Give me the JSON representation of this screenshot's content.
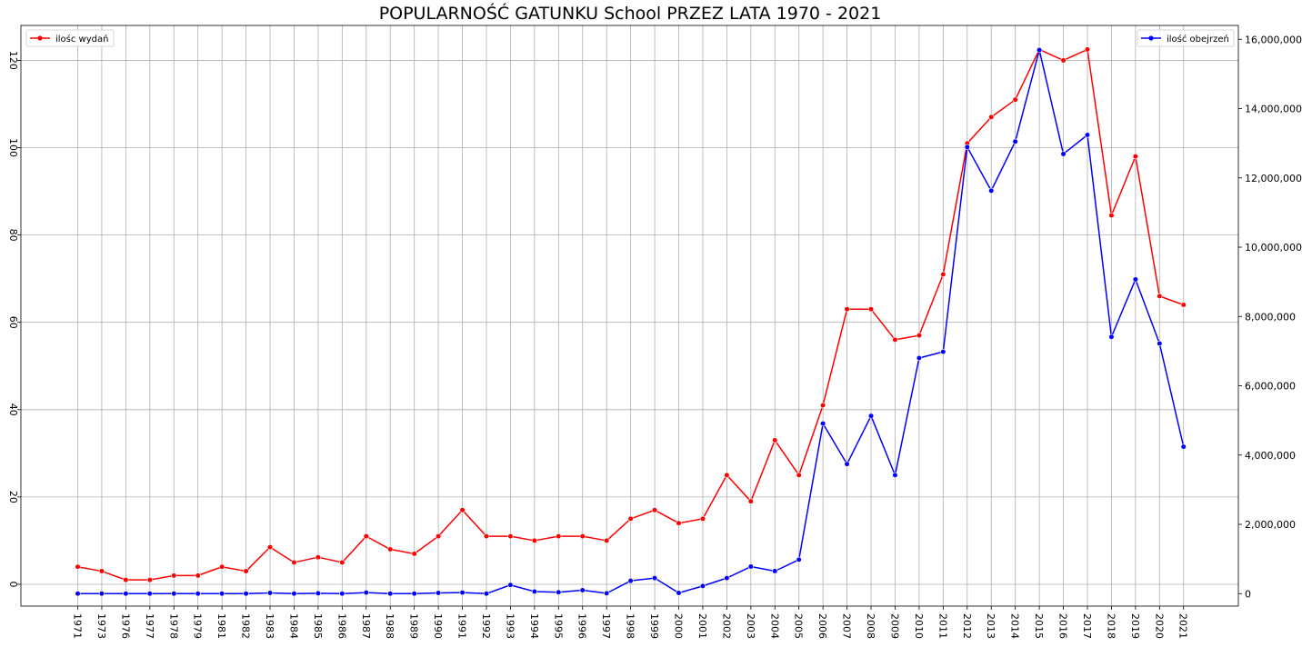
{
  "chart_data": {
    "type": "line",
    "title": "POPULARNOŚĆ GATUNKU School PRZEZ LATA 1970 - 2021",
    "xlabel": "",
    "ylabel": "",
    "y2label": "",
    "categories": [
      "1971",
      "1973",
      "1976",
      "1977",
      "1978",
      "1979",
      "1981",
      "1982",
      "1983",
      "1984",
      "1985",
      "1986",
      "1987",
      "1988",
      "1989",
      "1990",
      "1991",
      "1992",
      "1993",
      "1994",
      "1995",
      "1996",
      "1997",
      "1998",
      "1999",
      "2000",
      "2001",
      "2002",
      "2003",
      "2004",
      "2005",
      "2006",
      "2007",
      "2008",
      "2009",
      "2010",
      "2011",
      "2012",
      "2013",
      "2014",
      "2015",
      "2016",
      "2017",
      "2018",
      "2019",
      "2020",
      "2021"
    ],
    "ylim": [
      -5,
      128
    ],
    "y2lim": [
      -360000,
      16400000
    ],
    "yticks": [
      0,
      20,
      40,
      60,
      80,
      100,
      120
    ],
    "y2ticks": [
      0,
      2000000,
      4000000,
      6000000,
      8000000,
      10000000,
      12000000,
      14000000,
      16000000
    ],
    "y2tick_labels": [
      "0",
      "2,000,000",
      "4,000,000",
      "6,000,000",
      "8,000,000",
      "10,000,000",
      "12,000,000",
      "14,000,000",
      "16,000,000"
    ],
    "grid": true,
    "series": [
      {
        "name": "ilośc wydań",
        "axis": "left",
        "color": "#ff0000",
        "values": [
          4,
          3,
          1,
          1,
          2,
          2,
          4,
          3,
          8.5,
          5,
          6.2,
          5,
          11,
          8,
          7,
          11,
          17,
          11,
          11,
          10,
          11,
          11,
          10,
          15,
          17,
          14,
          15,
          25,
          19,
          33,
          25,
          41,
          63,
          63,
          56,
          57,
          71,
          101,
          107,
          111,
          122.5,
          120,
          122.5,
          84.5,
          98,
          66,
          64
        ]
      },
      {
        "name": "ilość obejrzeń",
        "axis": "right",
        "color": "#0000ff",
        "values": [
          0,
          0,
          0,
          0,
          0,
          0,
          0,
          0,
          20000,
          0,
          10000,
          0,
          30000,
          0,
          0,
          20000,
          30000,
          0,
          250000,
          60000,
          40000,
          100000,
          10000,
          370000,
          450000,
          20000,
          220000,
          450000,
          780000,
          650000,
          980000,
          4910000,
          3740000,
          5130000,
          3420000,
          6800000,
          6980000,
          12890000,
          11630000,
          13050000,
          15690000,
          12690000,
          13240000,
          7410000,
          9070000,
          7220000,
          4240000
        ]
      }
    ],
    "legends": [
      {
        "position": "top-left",
        "label": "ilośc wydań"
      },
      {
        "position": "top-right",
        "label": "ilość obejrzeń"
      }
    ]
  }
}
